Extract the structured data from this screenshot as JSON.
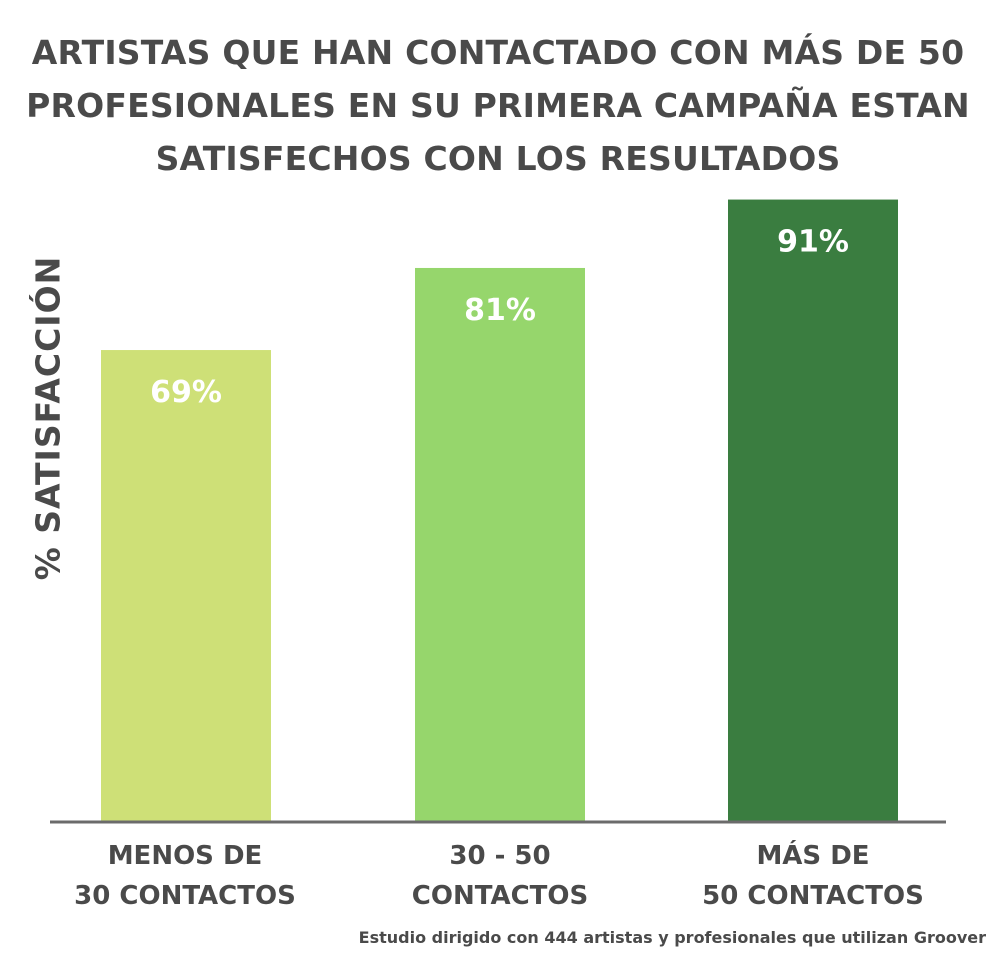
{
  "chart_data": {
    "type": "bar",
    "title_lines": [
      "ARTISTAS QUE HAN CONTACTADO CON MÁS DE 50",
      "PROFESIONALES EN SU PRIMERA CAMPAÑA ESTAN",
      "SATISFECHOS CON LOS RESULTADOS"
    ],
    "ylabel": "% SATISFACCIÓN",
    "xlabel": "",
    "categories": [
      [
        "MENOS DE",
        "30 CONTACTOS"
      ],
      [
        "30  -  50",
        "CONTACTOS"
      ],
      [
        "MÁS  DE",
        "50 CONTACTOS"
      ]
    ],
    "values": [
      69,
      81,
      91
    ],
    "data_labels": [
      "69%",
      "81%",
      "91%"
    ],
    "bar_colors": [
      "#cee077",
      "#96d66c",
      "#3a7d40"
    ],
    "ylim": [
      0,
      100
    ],
    "grid": false,
    "legend": "none"
  },
  "footnote": "Estudio dirigido con 444 artistas y profesionales que utilizan Groover"
}
